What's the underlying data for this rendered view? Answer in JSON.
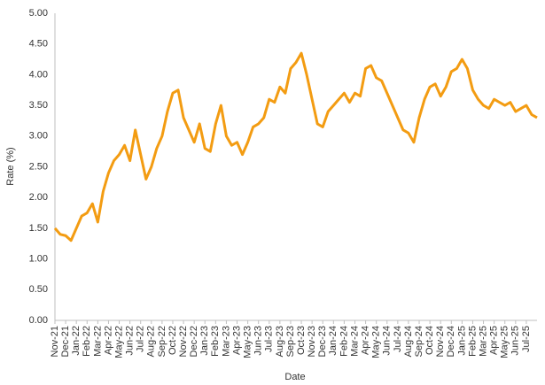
{
  "chart_data": {
    "type": "line",
    "x_label": "Date",
    "y_label": "Rate (%)",
    "categories": [
      "Nov-21",
      null,
      "Dec-21",
      null,
      "Jan-22",
      null,
      "Feb-22",
      null,
      "Mar-22",
      null,
      "Apr-22",
      null,
      "May-22",
      null,
      "Jun-22",
      null,
      "Jul-22",
      null,
      "Aug-22",
      null,
      "Sep-22",
      null,
      "Oct-22",
      null,
      "Nov-22",
      null,
      "Dec-22",
      null,
      "Jan-23",
      null,
      "Feb-23",
      null,
      "Mar-23",
      null,
      "Apr-23",
      null,
      "May-23",
      null,
      "Jun-23",
      null,
      "Jul-23",
      null,
      "Aug-23",
      null,
      "Sep-23",
      null,
      "Oct-23",
      null,
      "Nov-23",
      null,
      "Dec-23",
      null,
      "Jan-24",
      null,
      "Feb-24",
      null,
      "Mar-24",
      null,
      "Apr-24",
      null,
      "May-24",
      null,
      "Jun-24",
      null,
      "Jul-24",
      null,
      "Aug-24",
      null,
      "Sep-24",
      null,
      "Oct-24",
      null,
      "Nov-24",
      null,
      "Dec-24",
      null,
      "Jan-25",
      null,
      "Feb-25",
      null,
      "Mar-25",
      null,
      "Apr-25",
      null,
      "May-25",
      null,
      "Jun-25",
      null,
      "Jul-25",
      null,
      null
    ],
    "series": [
      {
        "name": "Rate",
        "color": "#f39c12",
        "values": [
          1.5,
          1.4,
          1.38,
          1.3,
          1.5,
          1.7,
          1.75,
          1.9,
          1.6,
          2.1,
          2.4,
          2.6,
          2.7,
          2.85,
          2.6,
          3.1,
          2.7,
          2.3,
          2.5,
          2.8,
          3.0,
          3.4,
          3.7,
          3.75,
          3.3,
          3.1,
          2.9,
          3.2,
          2.8,
          2.75,
          3.2,
          3.5,
          3.0,
          2.85,
          2.9,
          2.7,
          2.9,
          3.15,
          3.2,
          3.3,
          3.6,
          3.55,
          3.8,
          3.7,
          4.1,
          4.2,
          4.35,
          4.0,
          3.6,
          3.2,
          3.15,
          3.4,
          3.5,
          3.6,
          3.7,
          3.55,
          3.7,
          3.65,
          4.1,
          4.15,
          3.95,
          3.9,
          3.7,
          3.5,
          3.3,
          3.1,
          3.05,
          2.9,
          3.3,
          3.6,
          3.8,
          3.85,
          3.65,
          3.8,
          4.05,
          4.1,
          4.25,
          4.1,
          3.75,
          3.6,
          3.5,
          3.45,
          3.6,
          3.55,
          3.5,
          3.55,
          3.4,
          3.45,
          3.5,
          3.35,
          3.3
        ]
      }
    ],
    "ylim": [
      0,
      5
    ],
    "yticks": [
      {
        "value": 0,
        "label": "0.00"
      },
      {
        "value": 0.5,
        "label": "0.50"
      },
      {
        "value": 1,
        "label": "1.00"
      },
      {
        "value": 1.5,
        "label": "1.50"
      },
      {
        "value": 2,
        "label": "2.00"
      },
      {
        "value": 2.5,
        "label": "2.50"
      },
      {
        "value": 3,
        "label": "3.00"
      },
      {
        "value": 3.5,
        "label": "3.50"
      },
      {
        "value": 4,
        "label": "4.00"
      },
      {
        "value": 4.5,
        "label": "4.50"
      },
      {
        "value": 5,
        "label": "5.00"
      }
    ],
    "grid": false
  }
}
